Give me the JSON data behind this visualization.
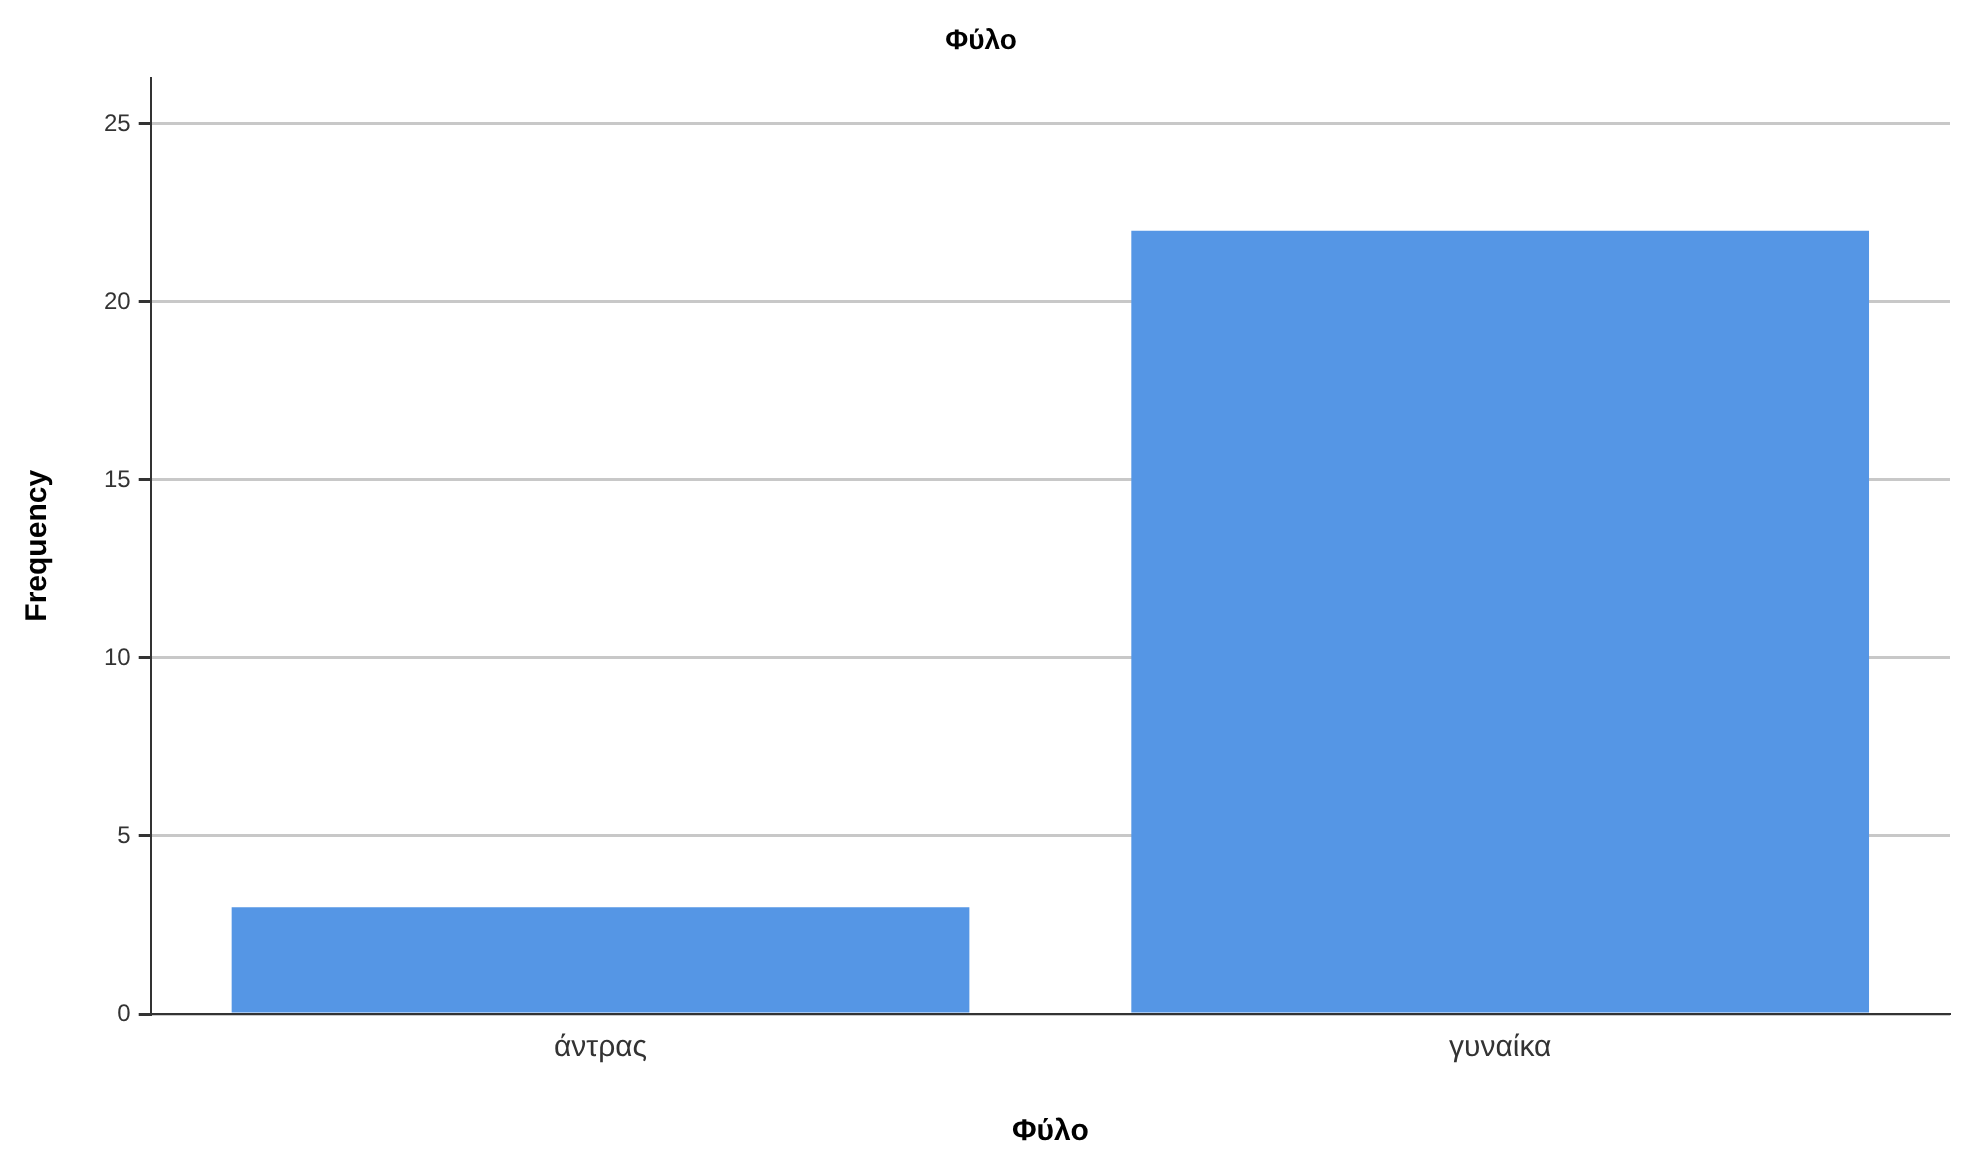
{
  "chart_data": {
    "type": "bar",
    "title": "Φύλο",
    "xlabel": "Φύλο",
    "ylabel": "Frequency",
    "categories": [
      "άντρας",
      "γυναίκα"
    ],
    "values": [
      3,
      22
    ],
    "color": "#5596e5",
    "ylim": [
      0,
      26.3
    ],
    "yticks": [
      0,
      5,
      10,
      15,
      20,
      25
    ],
    "grid": "y",
    "legend": false
  }
}
